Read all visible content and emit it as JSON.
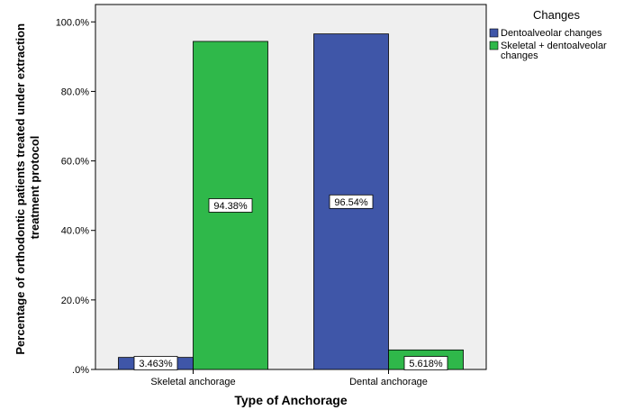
{
  "chart_data": {
    "type": "bar",
    "categories": [
      "Skeletal anchorage",
      "Dental anchorage"
    ],
    "series": [
      {
        "name": "Dentoalveolar changes",
        "values": [
          3.463,
          96.54
        ],
        "labels": [
          "3.463%",
          "96.54%"
        ],
        "color": "#3f56a8"
      },
      {
        "name": "Skeletal + dentoalveolar changes",
        "name_lines": [
          "Skeletal + dentoalveolar",
          "changes"
        ],
        "values": [
          94.38,
          5.618
        ],
        "labels": [
          "94.38%",
          "5.618%"
        ],
        "color": "#2fb84a"
      }
    ],
    "xlabel": "Type of Anchorage",
    "ylabel": "Percentage of orthodontic patients treated under extraction treatment protocol",
    "ylabel_lines": [
      "Percentage of orthodontic patients treated under extraction",
      "treatment protocol"
    ],
    "ylim": [
      0,
      105
    ],
    "yticks": [
      0,
      20,
      40,
      60,
      80,
      100
    ],
    "ytick_labels": [
      ".0%",
      "20.0%",
      "40.0%",
      "60.0%",
      "80.0%",
      "100.0%"
    ],
    "legend_title": "Changes",
    "legend_position": "right",
    "plot_background": "#efefef",
    "grid": false
  }
}
